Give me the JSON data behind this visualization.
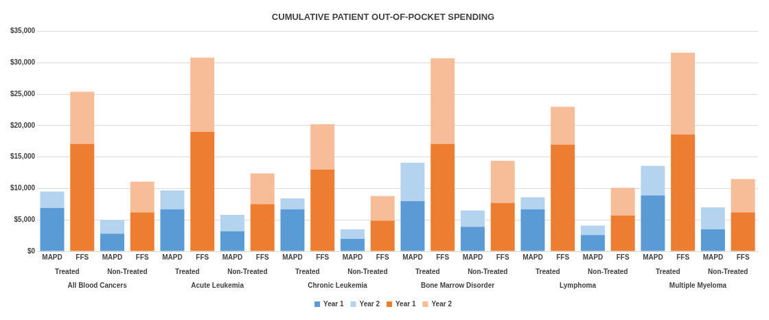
{
  "chart_data": {
    "type": "bar",
    "title": "CUMULATIVE PATIENT OUT-OF-POCKET SPENDING",
    "stacked": true,
    "grid": "y",
    "legend": "bottom",
    "categories": [
      "MAPD",
      "FFS",
      "MAPD",
      "FFS",
      "MAPD",
      "FFS",
      "MAPD",
      "FFS",
      "MAPD",
      "FFS",
      "MAPD",
      "FFS",
      "MAPD",
      "FFS",
      "MAPD",
      "FFS",
      "MAPD",
      "FFS",
      "MAPD",
      "FFS",
      "MAPD",
      "FFS",
      "MAPD",
      "FFS"
    ],
    "ylim": [
      0,
      35000
    ],
    "yticks": [
      {
        "value": 0,
        "label": "$0"
      },
      {
        "value": 5000,
        "label": "$5,000"
      },
      {
        "value": 10000,
        "label": "$10,000"
      },
      {
        "value": 15000,
        "label": "$15,000"
      },
      {
        "value": 20000,
        "label": "$20,000"
      },
      {
        "value": 25000,
        "label": "$25,000"
      },
      {
        "value": 30000,
        "label": "$30,000"
      },
      {
        "value": 35000,
        "label": "$35,000"
      }
    ],
    "series": [
      {
        "name": "Year 1",
        "color": "#5b9bd5",
        "values": [
          6900,
          null,
          2800,
          null,
          6700,
          null,
          3200,
          null,
          6700,
          null,
          2000,
          null,
          8000,
          null,
          3900,
          null,
          6700,
          null,
          2600,
          null,
          8900,
          null,
          3500,
          null
        ]
      },
      {
        "name": "Year 2",
        "color": "#b4d3ee",
        "values": [
          2600,
          null,
          2200,
          null,
          3000,
          null,
          2600,
          null,
          1700,
          null,
          1500,
          null,
          6100,
          null,
          2600,
          null,
          1900,
          null,
          1500,
          null,
          4700,
          null,
          3500,
          null
        ]
      },
      {
        "name": "Year 1",
        "color": "#ed7d31",
        "values": [
          null,
          17100,
          null,
          6200,
          null,
          19000,
          null,
          7500,
          null,
          13000,
          null,
          4900,
          null,
          17100,
          null,
          7700,
          null,
          17000,
          null,
          5700,
          null,
          18600,
          null,
          6200
        ]
      },
      {
        "name": "Year 2",
        "color": "#f6bd98",
        "values": [
          null,
          8300,
          null,
          4900,
          null,
          11800,
          null,
          4900,
          null,
          7200,
          null,
          3900,
          null,
          13600,
          null,
          6700,
          null,
          6000,
          null,
          4400,
          null,
          13000,
          null,
          5300
        ]
      }
    ],
    "annotations": [
      "Treated",
      "Non-Treated",
      "All Blood Cancers",
      "Treated",
      "Non-Treated",
      "Acute Leukemia",
      "Treated",
      "Non-Treated",
      "Chronic Leukemia",
      "Treated",
      "Non-Treated",
      "Bone Marrow Disorder",
      "Treated",
      "Non-Treated",
      "Lymphoma",
      "Treated",
      "Non-Treated",
      "Multiple Myeloma"
    ]
  }
}
